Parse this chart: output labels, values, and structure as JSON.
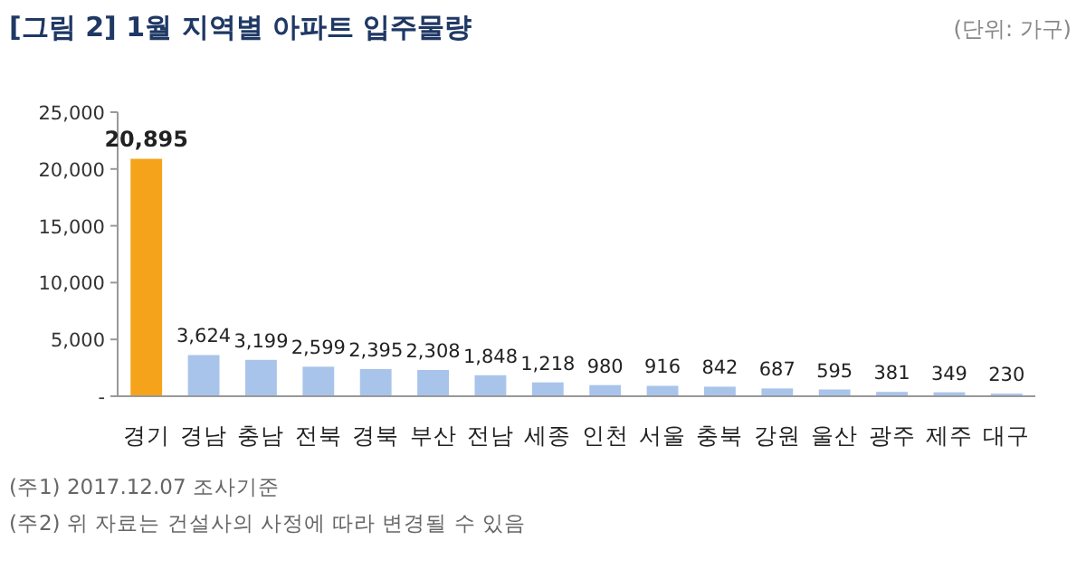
{
  "chart_data": {
    "type": "bar",
    "title": "[그림 2] 1월 지역별 아파트 입주물량",
    "subtitle": "(단위: 가구)",
    "categories": [
      "경기",
      "경남",
      "충남",
      "전북",
      "경북",
      "부산",
      "전남",
      "세종",
      "인천",
      "서울",
      "충북",
      "강원",
      "울산",
      "광주",
      "제주",
      "대구"
    ],
    "values": [
      20895,
      3624,
      3199,
      2599,
      2395,
      2308,
      1848,
      1218,
      980,
      916,
      842,
      687,
      595,
      381,
      349,
      230
    ],
    "colors": [
      "#f5a31a",
      "#a9c4eb",
      "#a9c4eb",
      "#a9c4eb",
      "#a9c4eb",
      "#a9c4eb",
      "#a9c4eb",
      "#a9c4eb",
      "#a9c4eb",
      "#a9c4eb",
      "#a9c4eb",
      "#a9c4eb",
      "#a9c4eb",
      "#a9c4eb",
      "#a9c4eb",
      "#a9c4eb"
    ],
    "value_labels": [
      "20,895",
      "3,624",
      "3,199",
      "2,599",
      "2,395",
      "2,308",
      "1,848",
      "1,218",
      "980",
      "916",
      "842",
      "687",
      "595",
      "381",
      "349",
      "230"
    ],
    "ylim": [
      0,
      25000
    ],
    "yticks": [
      {
        "value": 0,
        "label": "-"
      },
      {
        "value": 5000,
        "label": "5,000"
      },
      {
        "value": 10000,
        "label": "10,000"
      },
      {
        "value": 15000,
        "label": "15,000"
      },
      {
        "value": 20000,
        "label": "20,000"
      },
      {
        "value": 25000,
        "label": "25,000"
      }
    ],
    "annotations": [
      "(주1) 2017.12.07 조사기준",
      "(주2) 위 자료는 건설사의 사정에 따라 변경될 수 있음"
    ]
  }
}
